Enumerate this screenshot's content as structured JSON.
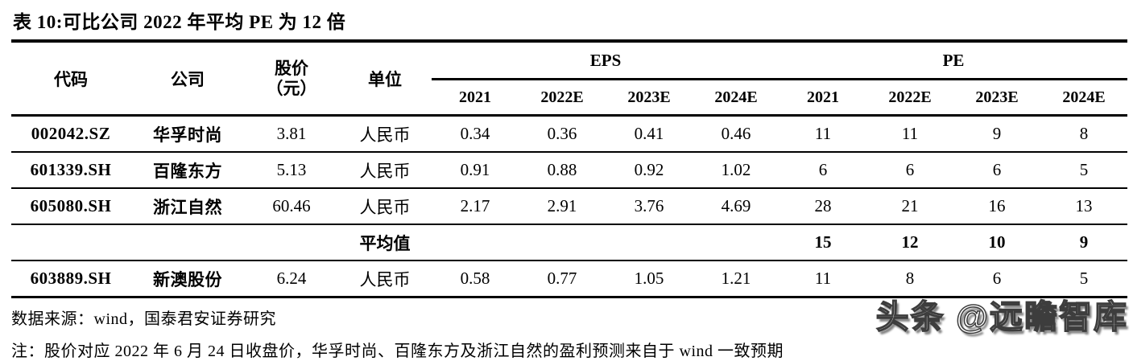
{
  "title": "表 10:可比公司 2022 年平均 PE 为 12 倍",
  "table": {
    "headers": {
      "code": "代码",
      "company": "公司",
      "price_line1": "股价",
      "price_line2": "（元）",
      "unit": "单位",
      "eps_group": "EPS",
      "pe_group": "PE",
      "eps_years": [
        "2021",
        "2022E",
        "2023E",
        "2024E"
      ],
      "pe_years": [
        "2021",
        "2022E",
        "2023E",
        "2024E"
      ]
    },
    "rows": [
      {
        "code": "002042.SZ",
        "company": "华孚时尚",
        "price": "3.81",
        "unit": "人民币",
        "eps": [
          "0.34",
          "0.36",
          "0.41",
          "0.46"
        ],
        "pe": [
          "11",
          "11",
          "9",
          "8"
        ]
      },
      {
        "code": "601339.SH",
        "company": "百隆东方",
        "price": "5.13",
        "unit": "人民币",
        "eps": [
          "0.91",
          "0.88",
          "0.92",
          "1.02"
        ],
        "pe": [
          "6",
          "6",
          "6",
          "5"
        ]
      },
      {
        "code": "605080.SH",
        "company": "浙江自然",
        "price": "60.46",
        "unit": "人民币",
        "eps": [
          "2.17",
          "2.91",
          "3.76",
          "4.69"
        ],
        "pe": [
          "28",
          "21",
          "16",
          "13"
        ]
      },
      {
        "code": "",
        "company": "",
        "price": "",
        "unit": "平均值",
        "eps": [
          "",
          "",
          "",
          ""
        ],
        "pe": [
          "15",
          "12",
          "10",
          "9"
        ]
      },
      {
        "code": "603889.SH",
        "company": "新澳股份",
        "price": "6.24",
        "unit": "人民币",
        "eps": [
          "0.58",
          "0.77",
          "1.05",
          "1.21"
        ],
        "pe": [
          "11",
          "8",
          "6",
          "5"
        ]
      }
    ]
  },
  "footer": {
    "source": "数据来源：wind，国泰君安证券研究",
    "note": "注：股价对应 2022 年 6 月 24 日收盘价，华孚时尚、百隆东方及浙江自然的盈利预测来自于 wind 一致预期"
  },
  "watermark": "头条 @远瞻智库"
}
